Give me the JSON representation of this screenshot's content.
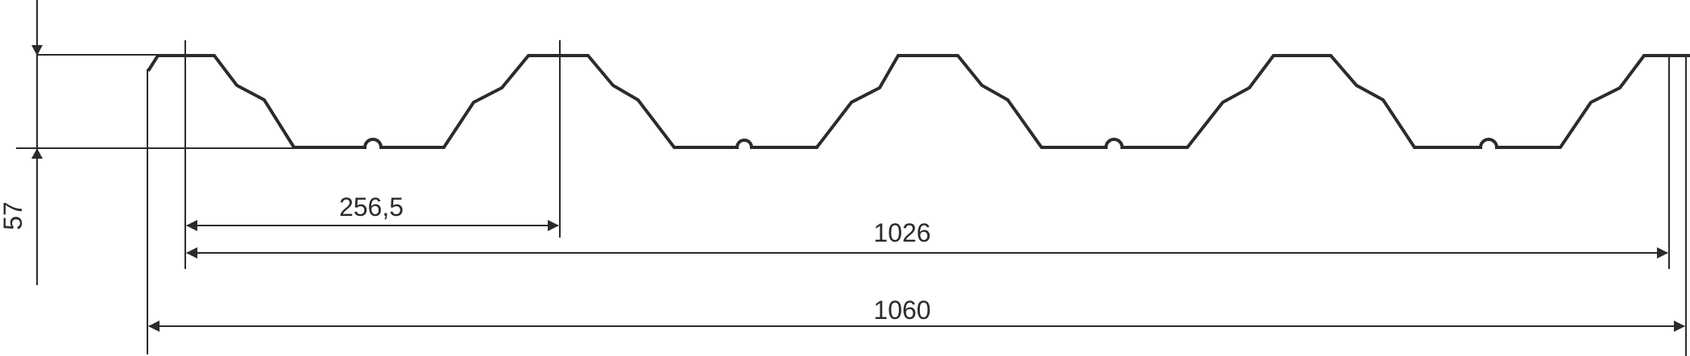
{
  "dimensions": {
    "height_label": "57",
    "pitch_label": "256,5",
    "effective_width_label": "1026",
    "total_width_label": "1060"
  },
  "colors": {
    "line": "#2b2b2b",
    "background": "#ffffff"
  }
}
